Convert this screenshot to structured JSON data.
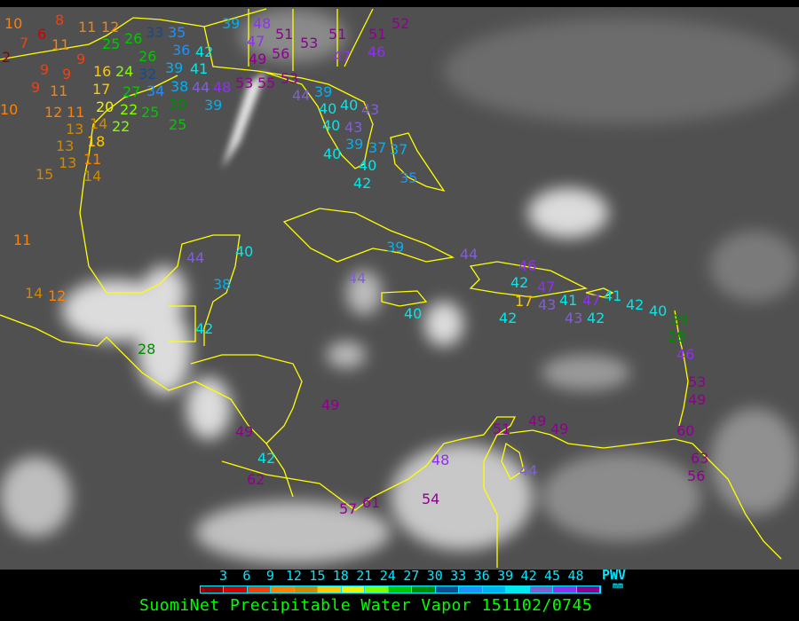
{
  "title": "SuomiNet Precipitable Water Vapor 151102/0745",
  "legend": {
    "unit_label": "PWV",
    "unit": "mm",
    "ticks": [
      "3",
      "6",
      "9",
      "12",
      "15",
      "18",
      "21",
      "24",
      "27",
      "30",
      "33",
      "36",
      "39",
      "42",
      "45",
      "48"
    ],
    "colors": [
      "#8b0000",
      "#d40000",
      "#f04010",
      "#ff8000",
      "#d08800",
      "#ffc800",
      "#f0f000",
      "#80ff00",
      "#00c800",
      "#008c00",
      "#104c90",
      "#1e90ff",
      "#00b0f0",
      "#00e8e8",
      "#8060d0",
      "#9030f0",
      "#900090"
    ]
  },
  "map": {
    "background": "#505050",
    "coastline_color": "#ffff00",
    "stations": [
      "10",
      "6",
      "8",
      "11",
      "12",
      "2",
      "7",
      "11",
      "9",
      "9",
      "9",
      "16",
      "24",
      "9",
      "11",
      "17",
      "20",
      "27",
      "10",
      "12",
      "11",
      "14",
      "13",
      "18",
      "22",
      "22",
      "25",
      "13",
      "11",
      "13",
      "14",
      "15",
      "11",
      "14",
      "12",
      "25",
      "26",
      "26",
      "32",
      "33",
      "35",
      "36",
      "39",
      "34",
      "38",
      "42",
      "41",
      "30",
      "44",
      "48",
      "39",
      "25",
      "39",
      "47",
      "48",
      "51",
      "49",
      "56",
      "53",
      "51",
      "51",
      "52",
      "47",
      "46",
      "53",
      "55",
      "53",
      "44",
      "39",
      "40",
      "40",
      "40",
      "43",
      "43",
      "39",
      "37",
      "40",
      "40",
      "42",
      "37",
      "35",
      "44",
      "40",
      "38",
      "42",
      "28",
      "49",
      "42",
      "62",
      "39",
      "44",
      "44",
      "40",
      "42",
      "46",
      "47",
      "17",
      "43",
      "41",
      "43",
      "47",
      "42",
      "42",
      "41",
      "42",
      "40",
      "29",
      "28",
      "46",
      "53",
      "49",
      "60",
      "63",
      "56",
      "49",
      "51",
      "49",
      "49",
      "48",
      "44",
      "54",
      "57",
      "61"
    ]
  }
}
